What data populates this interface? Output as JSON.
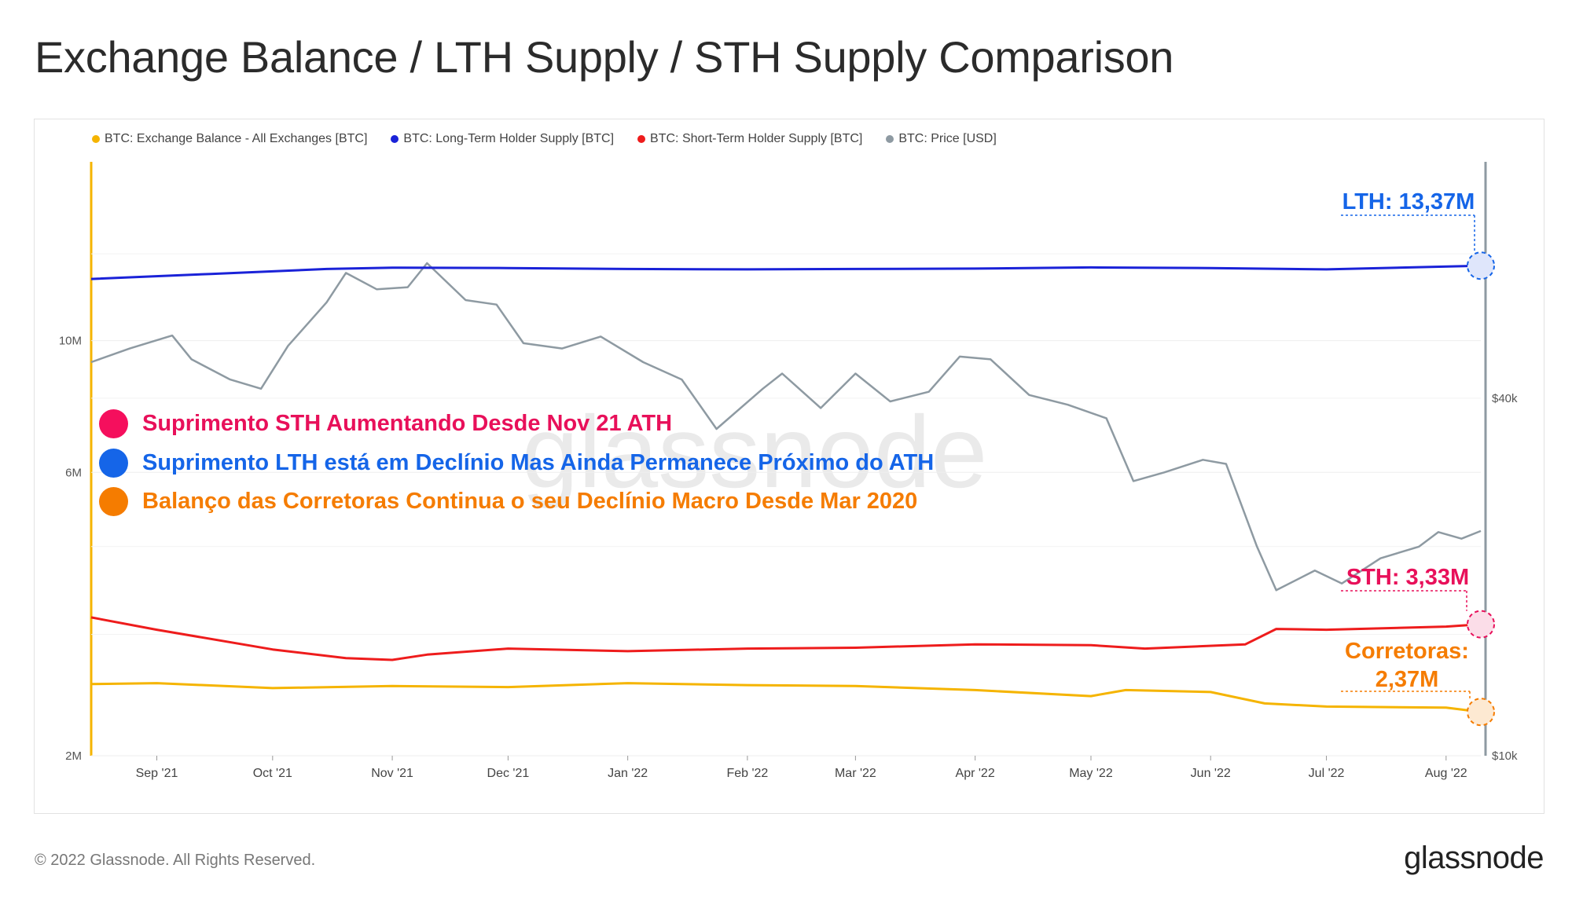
{
  "title": "Exchange Balance / LTH Supply / STH Supply Comparison",
  "footer": {
    "copyright": "© 2022 Glassnode. All Rights Reserved.",
    "brand": "glassnode"
  },
  "watermark": "glassnode",
  "colors": {
    "exchange": "#f5b400",
    "lth": "#1a22d8",
    "sth": "#ee1c1c",
    "price": "#8e9aa2",
    "lth_annot": "#1565e8",
    "sth_annot": "#e8105a",
    "exch_annot": "#f57c00"
  },
  "legend": [
    {
      "label": "BTC: Exchange Balance - All Exchanges [BTC]",
      "color": "#f5b400"
    },
    {
      "label": "BTC: Long-Term Holder Supply [BTC]",
      "color": "#1a22d8"
    },
    {
      "label": "BTC: Short-Term Holder Supply [BTC]",
      "color": "#ee1c1c"
    },
    {
      "label": "BTC: Price [USD]",
      "color": "#8e9aa2"
    }
  ],
  "notes": [
    {
      "text": "Suprimento STH  Aumentando Desde Nov 21 ATH",
      "color": "#e8105a"
    },
    {
      "text": "Suprimento LTH está em Declínio Mas Ainda Permanece Próximo do ATH",
      "color": "#1565e8"
    },
    {
      "text": "Balanço das Corretoras Continua o seu Declínio Macro Desde Mar 2020",
      "color": "#f57c00"
    }
  ],
  "annotations": {
    "lth": "LTH: 13,37M",
    "sth": "STH: 3,33M",
    "exchange_line1": "Corretoras:",
    "exchange_line2": "2,37M"
  },
  "chart_data": {
    "type": "line",
    "x_range": [
      "2021-08-15",
      "2022-08-10"
    ],
    "x_ticks": [
      "Sep '21",
      "Oct '21",
      "Nov '21",
      "Dec '21",
      "Jan '22",
      "Feb '22",
      "Mar '22",
      "Apr '22",
      "May '22",
      "Jun '22",
      "Jul '22",
      "Aug '22"
    ],
    "y_left": {
      "scale": "log",
      "ticks": [
        "10M",
        "6M",
        "2M"
      ],
      "range": [
        2000000,
        20000000
      ]
    },
    "y_right": {
      "scale": "log",
      "ticks": [
        "$40k",
        "$10k"
      ],
      "range": [
        10000,
        100000
      ]
    },
    "series": [
      {
        "name": "BTC: Long-Term Holder Supply [BTC]",
        "axis": "left",
        "x": [
          "2021-08-15",
          "2021-09-15",
          "2021-10-15",
          "2021-11-01",
          "2021-12-01",
          "2022-01-01",
          "2022-02-01",
          "2022-03-01",
          "2022-04-01",
          "2022-05-01",
          "2022-06-01",
          "2022-07-01",
          "2022-08-10"
        ],
        "values": [
          12700000,
          12950000,
          13200000,
          13270000,
          13250000,
          13200000,
          13180000,
          13200000,
          13220000,
          13280000,
          13250000,
          13180000,
          13370000
        ]
      },
      {
        "name": "BTC: Short-Term Holder Supply [BTC]",
        "axis": "left",
        "x": [
          "2021-08-15",
          "2021-09-01",
          "2021-10-01",
          "2021-10-20",
          "2021-11-01",
          "2021-11-10",
          "2021-12-01",
          "2022-01-01",
          "2022-02-01",
          "2022-03-01",
          "2022-04-01",
          "2022-05-01",
          "2022-05-15",
          "2022-06-10",
          "2022-06-18",
          "2022-07-01",
          "2022-08-01",
          "2022-08-10"
        ],
        "values": [
          3420000,
          3260000,
          3020000,
          2920000,
          2900000,
          2960000,
          3030000,
          3000000,
          3030000,
          3040000,
          3080000,
          3070000,
          3030000,
          3080000,
          3270000,
          3260000,
          3300000,
          3330000
        ]
      },
      {
        "name": "BTC: Exchange Balance - All Exchanges [BTC]",
        "axis": "left",
        "x": [
          "2021-08-15",
          "2021-09-01",
          "2021-10-01",
          "2021-11-01",
          "2021-12-01",
          "2022-01-01",
          "2022-02-01",
          "2022-03-01",
          "2022-04-01",
          "2022-05-01",
          "2022-05-10",
          "2022-06-01",
          "2022-06-15",
          "2022-07-01",
          "2022-08-01",
          "2022-08-10"
        ],
        "values": [
          2640000,
          2650000,
          2600000,
          2620000,
          2610000,
          2650000,
          2630000,
          2620000,
          2580000,
          2520000,
          2580000,
          2560000,
          2450000,
          2420000,
          2410000,
          2370000
        ]
      },
      {
        "name": "BTC: Price [USD]",
        "axis": "right",
        "x": [
          "2021-08-15",
          "2021-08-25",
          "2021-09-05",
          "2021-09-10",
          "2021-09-20",
          "2021-09-28",
          "2021-10-05",
          "2021-10-15",
          "2021-10-20",
          "2021-10-28",
          "2021-11-05",
          "2021-11-10",
          "2021-11-20",
          "2021-11-28",
          "2021-12-05",
          "2021-12-15",
          "2021-12-25",
          "2022-01-05",
          "2022-01-15",
          "2022-01-24",
          "2022-02-05",
          "2022-02-10",
          "2022-02-20",
          "2022-03-01",
          "2022-03-10",
          "2022-03-20",
          "2022-03-28",
          "2022-04-05",
          "2022-04-15",
          "2022-04-25",
          "2022-05-05",
          "2022-05-12",
          "2022-05-20",
          "2022-05-30",
          "2022-06-05",
          "2022-06-13",
          "2022-06-18",
          "2022-06-28",
          "2022-07-05",
          "2022-07-15",
          "2022-07-25",
          "2022-07-30",
          "2022-08-05",
          "2022-08-10"
        ],
        "values": [
          46000,
          48500,
          51000,
          46500,
          43000,
          41500,
          49000,
          58000,
          65000,
          61000,
          61500,
          67500,
          58500,
          57500,
          49500,
          48500,
          50800,
          46000,
          43000,
          35500,
          41500,
          44000,
          38500,
          44000,
          39500,
          41000,
          47000,
          46500,
          40500,
          39000,
          37000,
          29000,
          30000,
          31500,
          31000,
          22500,
          19000,
          20500,
          19500,
          21500,
          22500,
          23800,
          23200,
          23900
        ]
      }
    ]
  }
}
